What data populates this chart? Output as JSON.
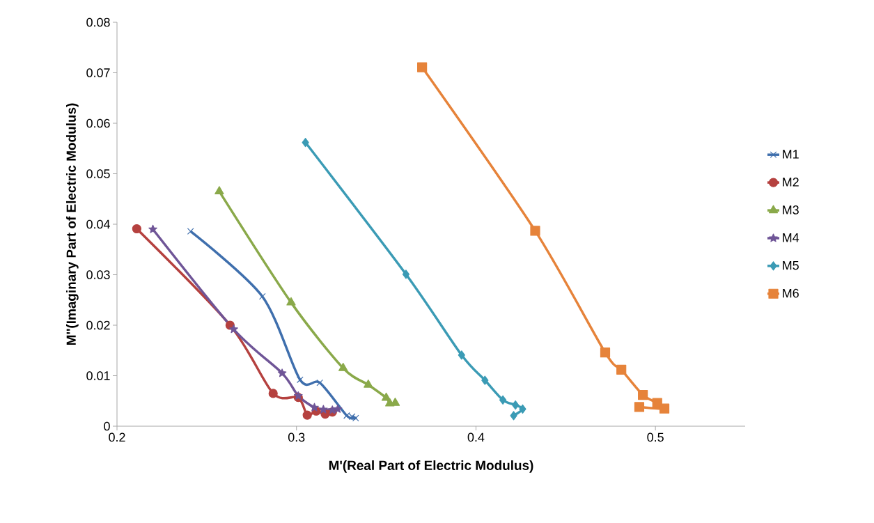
{
  "chart_data": {
    "type": "line",
    "xlabel": "M'(Real Part of Electric Modulus)",
    "ylabel": "M''(Imaginary Part of Electric Modulus)",
    "xlim": [
      0.2,
      0.55
    ],
    "xticks": [
      0.2,
      0.3,
      0.4,
      0.5
    ],
    "ylim": [
      0,
      0.08
    ],
    "yticks": [
      0,
      0.01,
      0.02,
      0.03,
      0.04,
      0.05,
      0.06,
      0.07,
      0.08
    ],
    "grid": false,
    "legend": "right",
    "line_style": "solid",
    "series": [
      {
        "name": "M1",
        "color": "#3f6fad",
        "marker": "cross",
        "x": [
          0.241,
          0.281,
          0.302,
          0.313,
          0.328,
          0.333,
          0.331
        ],
        "values": [
          0.0386,
          0.0257,
          0.0092,
          0.0086,
          0.0021,
          0.0016,
          0.0019
        ]
      },
      {
        "name": "M2",
        "color": "#b5413f",
        "marker": "circle",
        "x": [
          0.211,
          0.263,
          0.287,
          0.301,
          0.306,
          0.311,
          0.316,
          0.32
        ],
        "values": [
          0.0391,
          0.02,
          0.0065,
          0.0057,
          0.0022,
          0.003,
          0.0024,
          0.0028
        ]
      },
      {
        "name": "M3",
        "color": "#8aa94a",
        "marker": "triangle",
        "x": [
          0.257,
          0.297,
          0.326,
          0.34,
          0.35,
          0.352,
          0.355
        ],
        "values": [
          0.0465,
          0.0245,
          0.0115,
          0.0082,
          0.0056,
          0.0045,
          0.0046
        ]
      },
      {
        "name": "M4",
        "color": "#6f5597",
        "marker": "star",
        "x": [
          0.22,
          0.265,
          0.292,
          0.301,
          0.31,
          0.315,
          0.32,
          0.323
        ],
        "values": [
          0.039,
          0.0192,
          0.0105,
          0.006,
          0.0037,
          0.0033,
          0.0032,
          0.0034
        ]
      },
      {
        "name": "M5",
        "color": "#3b9bb5",
        "marker": "diamond",
        "x": [
          0.305,
          0.361,
          0.392,
          0.405,
          0.415,
          0.422,
          0.426,
          0.421
        ],
        "values": [
          0.0562,
          0.0301,
          0.0141,
          0.0091,
          0.0052,
          0.0042,
          0.0034,
          0.0021
        ]
      },
      {
        "name": "M6",
        "color": "#e6833a",
        "marker": "square",
        "x": [
          0.37,
          0.433,
          0.472,
          0.481,
          0.493,
          0.501,
          0.505,
          0.491
        ],
        "values": [
          0.0711,
          0.0387,
          0.0146,
          0.0112,
          0.0062,
          0.0046,
          0.0035,
          0.0038
        ]
      }
    ]
  }
}
